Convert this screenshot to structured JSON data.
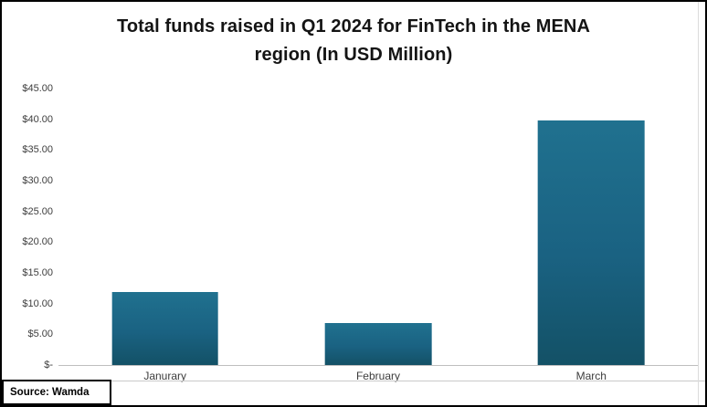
{
  "chart_data": {
    "type": "bar",
    "title": "Total funds raised in Q1 2024 for FinTech in the MENA region (In USD Million)",
    "title_lines": [
      "Total funds raised in Q1 2024 for FinTech in the MENA",
      "region (In USD Million)"
    ],
    "categories": [
      "Janurary",
      "February",
      "March"
    ],
    "values": [
      11.9,
      6.9,
      39.8
    ],
    "ylim": [
      0,
      45
    ],
    "y_tick_labels": [
      "$45.00",
      "$40.00",
      "$35.00",
      "$30.00",
      "$25.00",
      "$20.00",
      "$15.00",
      "$10.00",
      "$5.00",
      "$-"
    ],
    "grid": false,
    "legend": false,
    "xlabel": "",
    "ylabel": "",
    "bar_color_top": "#20718F",
    "bar_color_bottom": "#135166"
  },
  "source": {
    "label": "Source: Wamda"
  },
  "colors": {
    "axis_line": "#bfbfbf",
    "title_text": "#141414",
    "tick_text": "#3d3d3d",
    "frame_border": "#000000"
  }
}
